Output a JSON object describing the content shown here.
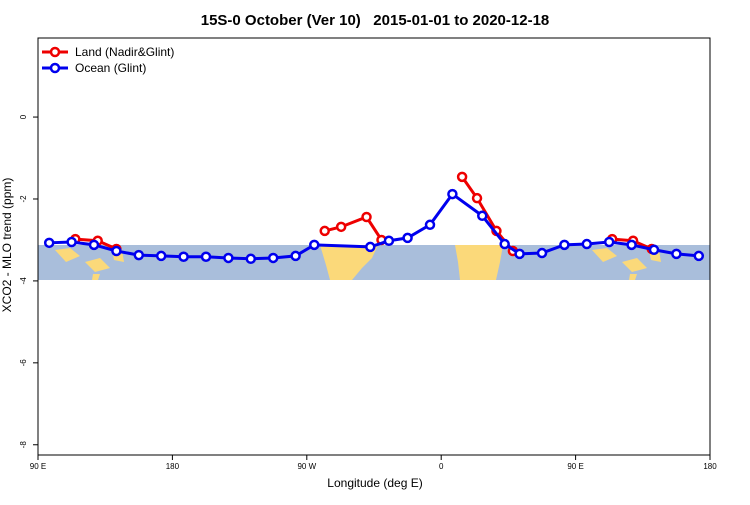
{
  "chart_data": {
    "type": "line",
    "title": "15S-0 October (Ver 10)   2015-01-01 to 2020-12-18",
    "xlabel": "Longitude (deg E)",
    "ylabel": "XCO2 - MLO trend (ppm)",
    "xlim": [
      90,
      540
    ],
    "ylim": [
      -8.25,
      1.93
    ],
    "xticks": [
      {
        "value": 90,
        "label": "90 E"
      },
      180,
      {
        "value": 270,
        "label": "90 W"
      },
      {
        "value": 360,
        "label": "0"
      },
      {
        "value": 450,
        "label": "90 E"
      },
      {
        "value": 540,
        "label": "180"
      }
    ],
    "yticks": [
      0,
      -2,
      -4,
      -6,
      -8
    ],
    "legend": "top-left",
    "series": [
      {
        "name": "Land (Nadir&Glint)",
        "color": "#ee0000",
        "x": [
          115,
          130,
          142.5,
          null,
          282,
          293,
          310,
          320,
          null,
          374,
          384,
          397,
          408,
          null,
          474.5,
          488.5,
          501
        ],
        "values": [
          -2.98,
          -3.02,
          -3.22,
          null,
          -2.78,
          -2.68,
          -2.44,
          -3.0,
          null,
          -1.46,
          -1.98,
          -2.78,
          -3.27,
          null,
          -2.98,
          -3.02,
          -3.22
        ]
      },
      {
        "name": "Ocean (Glint)",
        "color": "#0000ee",
        "x": [
          97.5,
          112.5,
          127.5,
          142.5,
          157.5,
          172.5,
          187.5,
          202.5,
          217.5,
          232.5,
          247.5,
          262.5,
          275,
          312.5,
          325,
          337.5,
          352.5,
          367.5,
          387.5,
          402.5,
          412.5,
          427.5,
          442.5,
          457.5,
          472.5,
          487.5,
          502.5,
          517.5,
          532.5
        ],
        "values": [
          -3.07,
          -3.05,
          -3.12,
          -3.27,
          -3.37,
          -3.39,
          -3.41,
          -3.41,
          -3.44,
          -3.46,
          -3.44,
          -3.39,
          -3.12,
          -3.17,
          -3.02,
          -2.95,
          -2.63,
          -1.88,
          -2.41,
          -3.1,
          -3.34,
          -3.32,
          -3.12,
          -3.1,
          -3.05,
          -3.12,
          -3.24,
          -3.34,
          -3.39
        ]
      }
    ]
  }
}
